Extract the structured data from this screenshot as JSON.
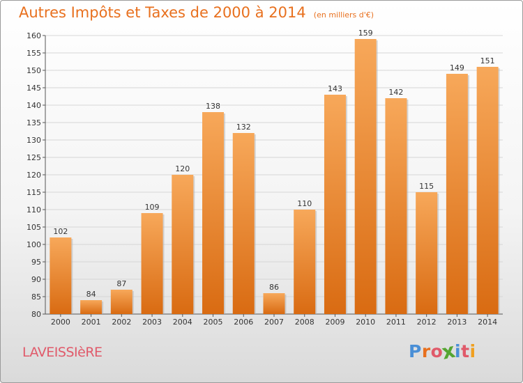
{
  "header": {
    "title": "Autres Impôts et Taxes de 2000 à 2014",
    "unit": "(en milliers d'€)"
  },
  "footer": {
    "commune": "LAVEISSIèRE",
    "logo": "Proxiti"
  },
  "colors": {
    "title": "#e8701e",
    "bar_light": "#f7a85a",
    "bar_dark": "#d96b12",
    "commune": "#e05a6a",
    "logo_letters": [
      "#4a8fd6",
      "#e8701e",
      "#e05a6a",
      "#55a532",
      "#4a8fd6",
      "#e05a6a",
      "#f0a020"
    ]
  },
  "chart_data": {
    "type": "bar",
    "title": "Autres Impôts et Taxes de 2000 à 2014",
    "ylabel": "",
    "xlabel": "",
    "categories": [
      "2000",
      "2001",
      "2002",
      "2003",
      "2004",
      "2005",
      "2006",
      "2007",
      "2008",
      "2009",
      "2010",
      "2011",
      "2012",
      "2013",
      "2014"
    ],
    "values": [
      102,
      84,
      87,
      109,
      120,
      138,
      132,
      86,
      110,
      143,
      159,
      142,
      115,
      149,
      151
    ],
    "ylim": [
      80,
      160
    ],
    "yticks": [
      80,
      85,
      90,
      95,
      100,
      105,
      110,
      115,
      120,
      125,
      130,
      135,
      140,
      145,
      150,
      155,
      160
    ],
    "grid": true,
    "legend": "none"
  }
}
